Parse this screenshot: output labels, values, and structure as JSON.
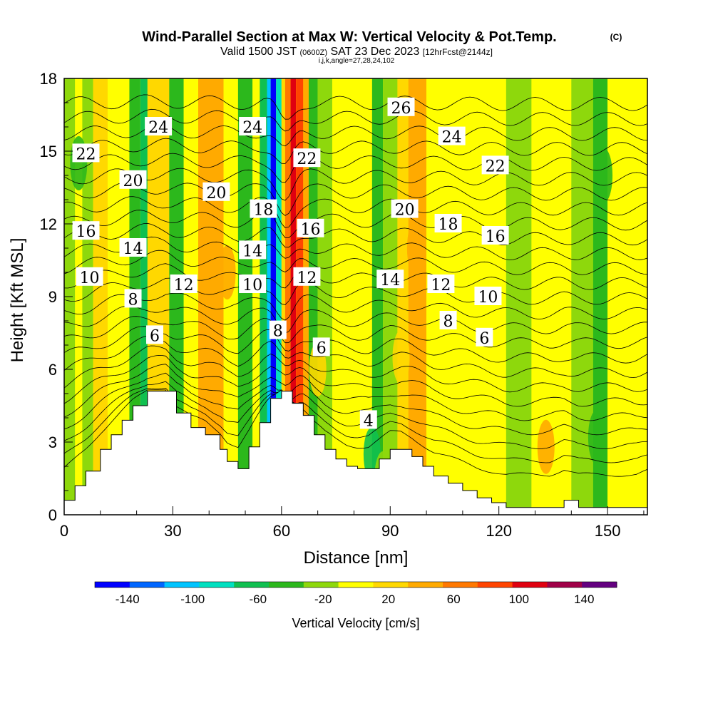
{
  "chart_data": {
    "type": "heatmap",
    "title": "Wind-Parallel Section at Max W: Vertical Velocity & Pot.Temp.",
    "title_mark": "(C)",
    "subtitle_parts": [
      "Valid 1500 JST",
      "(0600Z)",
      "SAT 23 Dec 2023",
      "[12hrFcst@2144z]"
    ],
    "subtitle_line2": "i,j,k,angle=27,28,24,102",
    "xlabel": "Distance [nm]",
    "ylabel": "Height [Kft MSL]",
    "xlim": [
      0,
      161
    ],
    "ylim": [
      0,
      18
    ],
    "x_ticks": [
      0,
      30,
      60,
      90,
      120,
      150
    ],
    "y_ticks": [
      0,
      3,
      6,
      9,
      12,
      15,
      18
    ],
    "colorbar": {
      "label": "Vertical Velocity [cm/s]",
      "ticks": [
        -140,
        -100,
        -60,
        -20,
        20,
        60,
        100,
        140
      ],
      "bounds": [
        -160,
        160
      ],
      "colors": [
        "#0000ff",
        "#0066ff",
        "#00c4ff",
        "#00e0c0",
        "#10c050",
        "#2cb81c",
        "#8ed80c",
        "#ffff00",
        "#ffd800",
        "#ffaa00",
        "#ff7800",
        "#ff4400",
        "#e00010",
        "#a00048",
        "#640080"
      ]
    },
    "columns": [
      {
        "x0": 0,
        "x1": 3,
        "w": -20
      },
      {
        "x0": 3,
        "x1": 5,
        "w": 10
      },
      {
        "x0": 5,
        "x1": 8,
        "w": -15
      },
      {
        "x0": 8,
        "x1": 12,
        "w": 20
      },
      {
        "x0": 12,
        "x1": 18,
        "w": -10
      },
      {
        "x0": 18,
        "x1": 21,
        "w": -45
      },
      {
        "x0": 21,
        "x1": 23,
        "w": -70
      },
      {
        "x0": 23,
        "x1": 29,
        "w": 22
      },
      {
        "x0": 29,
        "x1": 33,
        "w": -40
      },
      {
        "x0": 33,
        "x1": 37,
        "w": -10
      },
      {
        "x0": 37,
        "x1": 44,
        "w": 32
      },
      {
        "x0": 44,
        "x1": 48,
        "w": 10
      },
      {
        "x0": 48,
        "x1": 52,
        "w": -35
      },
      {
        "x0": 52,
        "x1": 54,
        "w": -10
      },
      {
        "x0": 54,
        "x1": 56,
        "w": -60
      },
      {
        "x0": 56,
        "x1": 57,
        "w": -110
      },
      {
        "x0": 57,
        "x1": 58.5,
        "w": -150
      },
      {
        "x0": 58.5,
        "x1": 60,
        "w": -90
      },
      {
        "x0": 60,
        "x1": 61,
        "w": 20
      },
      {
        "x0": 61,
        "x1": 62.5,
        "w": 70
      },
      {
        "x0": 62.5,
        "x1": 64,
        "w": 110
      },
      {
        "x0": 64,
        "x1": 66,
        "w": 90
      },
      {
        "x0": 66,
        "x1": 67.5,
        "w": 50
      },
      {
        "x0": 67.5,
        "x1": 70,
        "w": -50
      },
      {
        "x0": 70,
        "x1": 74,
        "w": -20
      },
      {
        "x0": 74,
        "x1": 80,
        "w": 10
      },
      {
        "x0": 80,
        "x1": 85,
        "w": -10
      },
      {
        "x0": 85,
        "x1": 88,
        "w": -35
      },
      {
        "x0": 88,
        "x1": 92,
        "w": -15
      },
      {
        "x0": 92,
        "x1": 95,
        "w": 15
      },
      {
        "x0": 95,
        "x1": 100,
        "w": 35
      },
      {
        "x0": 100,
        "x1": 105,
        "w": 10
      },
      {
        "x0": 105,
        "x1": 112,
        "w": -10
      },
      {
        "x0": 112,
        "x1": 118,
        "w": 5
      },
      {
        "x0": 118,
        "x1": 122,
        "w": -10
      },
      {
        "x0": 122,
        "x1": 129,
        "w": -30
      },
      {
        "x0": 129,
        "x1": 133,
        "w": -10
      },
      {
        "x0": 133,
        "x1": 140,
        "w": 10
      },
      {
        "x0": 140,
        "x1": 146,
        "w": -20
      },
      {
        "x0": 146,
        "x1": 150,
        "w": -35
      },
      {
        "x0": 150,
        "x1": 154,
        "w": -10
      },
      {
        "x0": 154,
        "x1": 161,
        "w": 10
      }
    ],
    "patches": [
      {
        "x": 4,
        "y": 14.5,
        "w": -40
      },
      {
        "x": 45,
        "y": 10,
        "w": 45
      },
      {
        "x": 85,
        "y": 2.5,
        "w": -55
      },
      {
        "x": 93,
        "y": 6.5,
        "w": 15
      },
      {
        "x": 97,
        "y": 11,
        "w": 45
      },
      {
        "x": 133,
        "y": 2.8,
        "w": 45
      },
      {
        "x": 147,
        "y": 3.2,
        "w": -35
      },
      {
        "x": 149,
        "y": 14,
        "w": -35
      },
      {
        "x": 70,
        "y": 6,
        "w": 25
      },
      {
        "x": 88,
        "y": 1.5,
        "w": -30
      }
    ],
    "terrain": [
      [
        0,
        0.6
      ],
      [
        3,
        1.2
      ],
      [
        6,
        1.8
      ],
      [
        10,
        2.7
      ],
      [
        13,
        3.3
      ],
      [
        16,
        3.9
      ],
      [
        19,
        4.5
      ],
      [
        23,
        5.1
      ],
      [
        28,
        5.1
      ],
      [
        31,
        4.2
      ],
      [
        35,
        3.6
      ],
      [
        39,
        3.3
      ],
      [
        43,
        2.7
      ],
      [
        45,
        2.2
      ],
      [
        48,
        1.9
      ],
      [
        51,
        2.8
      ],
      [
        54,
        3.8
      ],
      [
        57,
        4.8
      ],
      [
        60,
        5.1
      ],
      [
        63,
        4.6
      ],
      [
        66,
        4.1
      ],
      [
        69,
        3.3
      ],
      [
        72,
        2.7
      ],
      [
        75,
        2.3
      ],
      [
        78,
        2.0
      ],
      [
        81,
        1.9
      ],
      [
        84,
        1.9
      ],
      [
        87,
        2.3
      ],
      [
        90,
        2.7
      ],
      [
        93,
        2.7
      ],
      [
        96,
        2.4
      ],
      [
        99,
        2.0
      ],
      [
        102,
        1.6
      ],
      [
        106,
        1.3
      ],
      [
        110,
        1.0
      ],
      [
        114,
        0.7
      ],
      [
        118,
        0.5
      ],
      [
        122,
        0.3
      ],
      [
        126,
        0.3
      ],
      [
        130,
        0.3
      ],
      [
        134,
        0.3
      ],
      [
        138,
        0.6
      ],
      [
        142,
        0.3
      ],
      [
        146,
        0.3
      ],
      [
        150,
        0.3
      ],
      [
        154,
        0.3
      ],
      [
        158,
        0.3
      ],
      [
        161,
        0.5
      ]
    ],
    "theta_levels": [
      2,
      3,
      4,
      5,
      6,
      7,
      8,
      9,
      10,
      11,
      12,
      13,
      14,
      15,
      16,
      17,
      18,
      19,
      20,
      21,
      22,
      23,
      24,
      25,
      26,
      27
    ],
    "contour_labels": [
      {
        "text": "24",
        "x": 26,
        "y": 16.0
      },
      {
        "text": "24",
        "x": 52,
        "y": 16.0
      },
      {
        "text": "22",
        "x": 6,
        "y": 14.9
      },
      {
        "text": "20",
        "x": 19,
        "y": 13.8
      },
      {
        "text": "20",
        "x": 42,
        "y": 13.3
      },
      {
        "text": "18",
        "x": 55,
        "y": 12.6
      },
      {
        "text": "22",
        "x": 67,
        "y": 14.7
      },
      {
        "text": "26",
        "x": 93,
        "y": 16.8
      },
      {
        "text": "24",
        "x": 107,
        "y": 15.6
      },
      {
        "text": "22",
        "x": 119,
        "y": 14.4
      },
      {
        "text": "20",
        "x": 94,
        "y": 12.6
      },
      {
        "text": "18",
        "x": 106,
        "y": 12.0
      },
      {
        "text": "16",
        "x": 119,
        "y": 11.5
      },
      {
        "text": "16",
        "x": 6,
        "y": 11.7
      },
      {
        "text": "16",
        "x": 68,
        "y": 11.8
      },
      {
        "text": "14",
        "x": 19,
        "y": 11.0
      },
      {
        "text": "14",
        "x": 52,
        "y": 10.9
      },
      {
        "text": "12",
        "x": 33,
        "y": 9.5
      },
      {
        "text": "12",
        "x": 67,
        "y": 9.8
      },
      {
        "text": "10",
        "x": 7,
        "y": 9.8
      },
      {
        "text": "10",
        "x": 52,
        "y": 9.5
      },
      {
        "text": "8",
        "x": 19,
        "y": 8.9
      },
      {
        "text": "14",
        "x": 90,
        "y": 9.7
      },
      {
        "text": "12",
        "x": 104,
        "y": 9.5
      },
      {
        "text": "10",
        "x": 117,
        "y": 9.0
      },
      {
        "text": "8",
        "x": 59,
        "y": 7.6
      },
      {
        "text": "8",
        "x": 106,
        "y": 8.0
      },
      {
        "text": "6",
        "x": 25,
        "y": 7.4
      },
      {
        "text": "6",
        "x": 71,
        "y": 6.9
      },
      {
        "text": "6",
        "x": 116,
        "y": 7.3
      },
      {
        "text": "4",
        "x": 84,
        "y": 3.9
      }
    ]
  }
}
